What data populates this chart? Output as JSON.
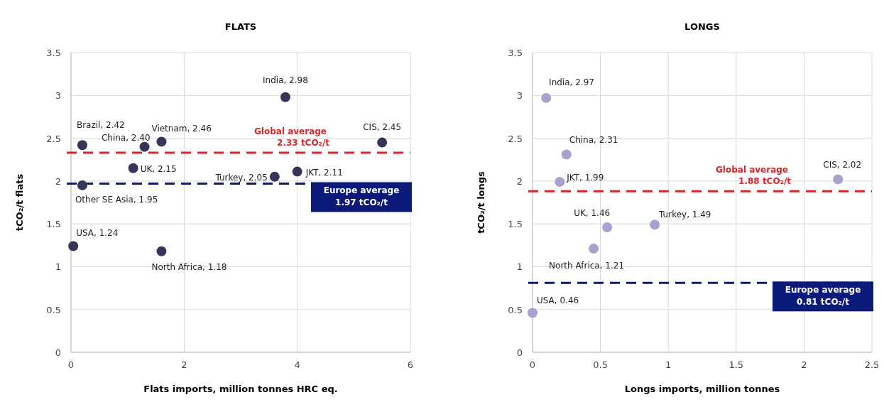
{
  "chart_data": [
    {
      "type": "scatter",
      "title": "FLATS",
      "xlabel": "Flats imports, million tonnes HRC eq.",
      "ylabel": "tCO₂/t flats",
      "xlim": [
        0,
        6
      ],
      "xticks": [
        0,
        2,
        4,
        6
      ],
      "ylim": [
        0,
        3.5
      ],
      "yticks": [
        0,
        0.5,
        1,
        1.5,
        2,
        2.5,
        3,
        3.5
      ],
      "grid": true,
      "marker": "circle",
      "series": [
        {
          "color": "#35355a",
          "x": [
            0.04,
            0.2,
            0.2,
            1.1,
            1.3,
            1.6,
            1.6,
            3.6,
            3.79,
            4.0,
            5.5
          ],
          "values": [
            1.24,
            2.42,
            1.95,
            2.15,
            2.4,
            1.18,
            2.46,
            2.05,
            2.98,
            2.11,
            2.45
          ],
          "value_labels": [
            "USA, 1.24",
            "Brazil, 2.42",
            "Other SE Asia, 1.95",
            "UK, 2.15",
            "China, 2.40",
            "North Africa, 1.18",
            "Vietnam, 2.46",
            "Turkey, 2.05",
            "India, 2.98",
            "JKT, 2.11",
            "CIS, 2.45"
          ]
        }
      ],
      "ref_lines": [
        {
          "axis": "y",
          "value": 2.33,
          "label": "Global average\n2.33 tCO₂/t",
          "color": "#d9262b",
          "line_style": "dashed"
        },
        {
          "axis": "y",
          "value": 1.97,
          "label": "Europe average\n1.97 tCO₂/t",
          "color": "#0c1a7a",
          "line_style": "dashed"
        }
      ]
    },
    {
      "type": "scatter",
      "title": "LONGS",
      "xlabel": "Longs imports, million tonnes",
      "ylabel": "tCO₂/t longs",
      "xlim": [
        0,
        2.5
      ],
      "xticks": [
        0,
        0.5,
        1,
        1.5,
        2,
        2.5
      ],
      "ylim": [
        0,
        3.5
      ],
      "yticks": [
        0,
        0.5,
        1,
        1.5,
        2,
        2.5,
        3,
        3.5
      ],
      "grid": true,
      "marker": "circle",
      "series": [
        {
          "color": "#a5a3d0",
          "x": [
            0,
            0.1,
            0.2,
            0.25,
            0.45,
            0.55,
            0.9,
            2.25
          ],
          "values": [
            0.46,
            2.97,
            1.99,
            2.31,
            1.21,
            1.46,
            1.49,
            2.02
          ],
          "value_labels": [
            "USA, 0.46",
            "India, 2.97",
            "JKT, 1.99",
            "China, 2.31",
            "North Africa, 1.21",
            "UK, 1.46",
            "Turkey, 1.49",
            "CIS, 2.02"
          ]
        }
      ],
      "ref_lines": [
        {
          "axis": "y",
          "value": 1.88,
          "label": "Global average\n1.88 tCO₂/t",
          "color": "#d9262b",
          "line_style": "dashed"
        },
        {
          "axis": "y",
          "value": 0.81,
          "label": "Europe average\n0.81 tCO₂/t",
          "color": "#0c1a7a",
          "line_style": "dashed"
        }
      ]
    }
  ]
}
